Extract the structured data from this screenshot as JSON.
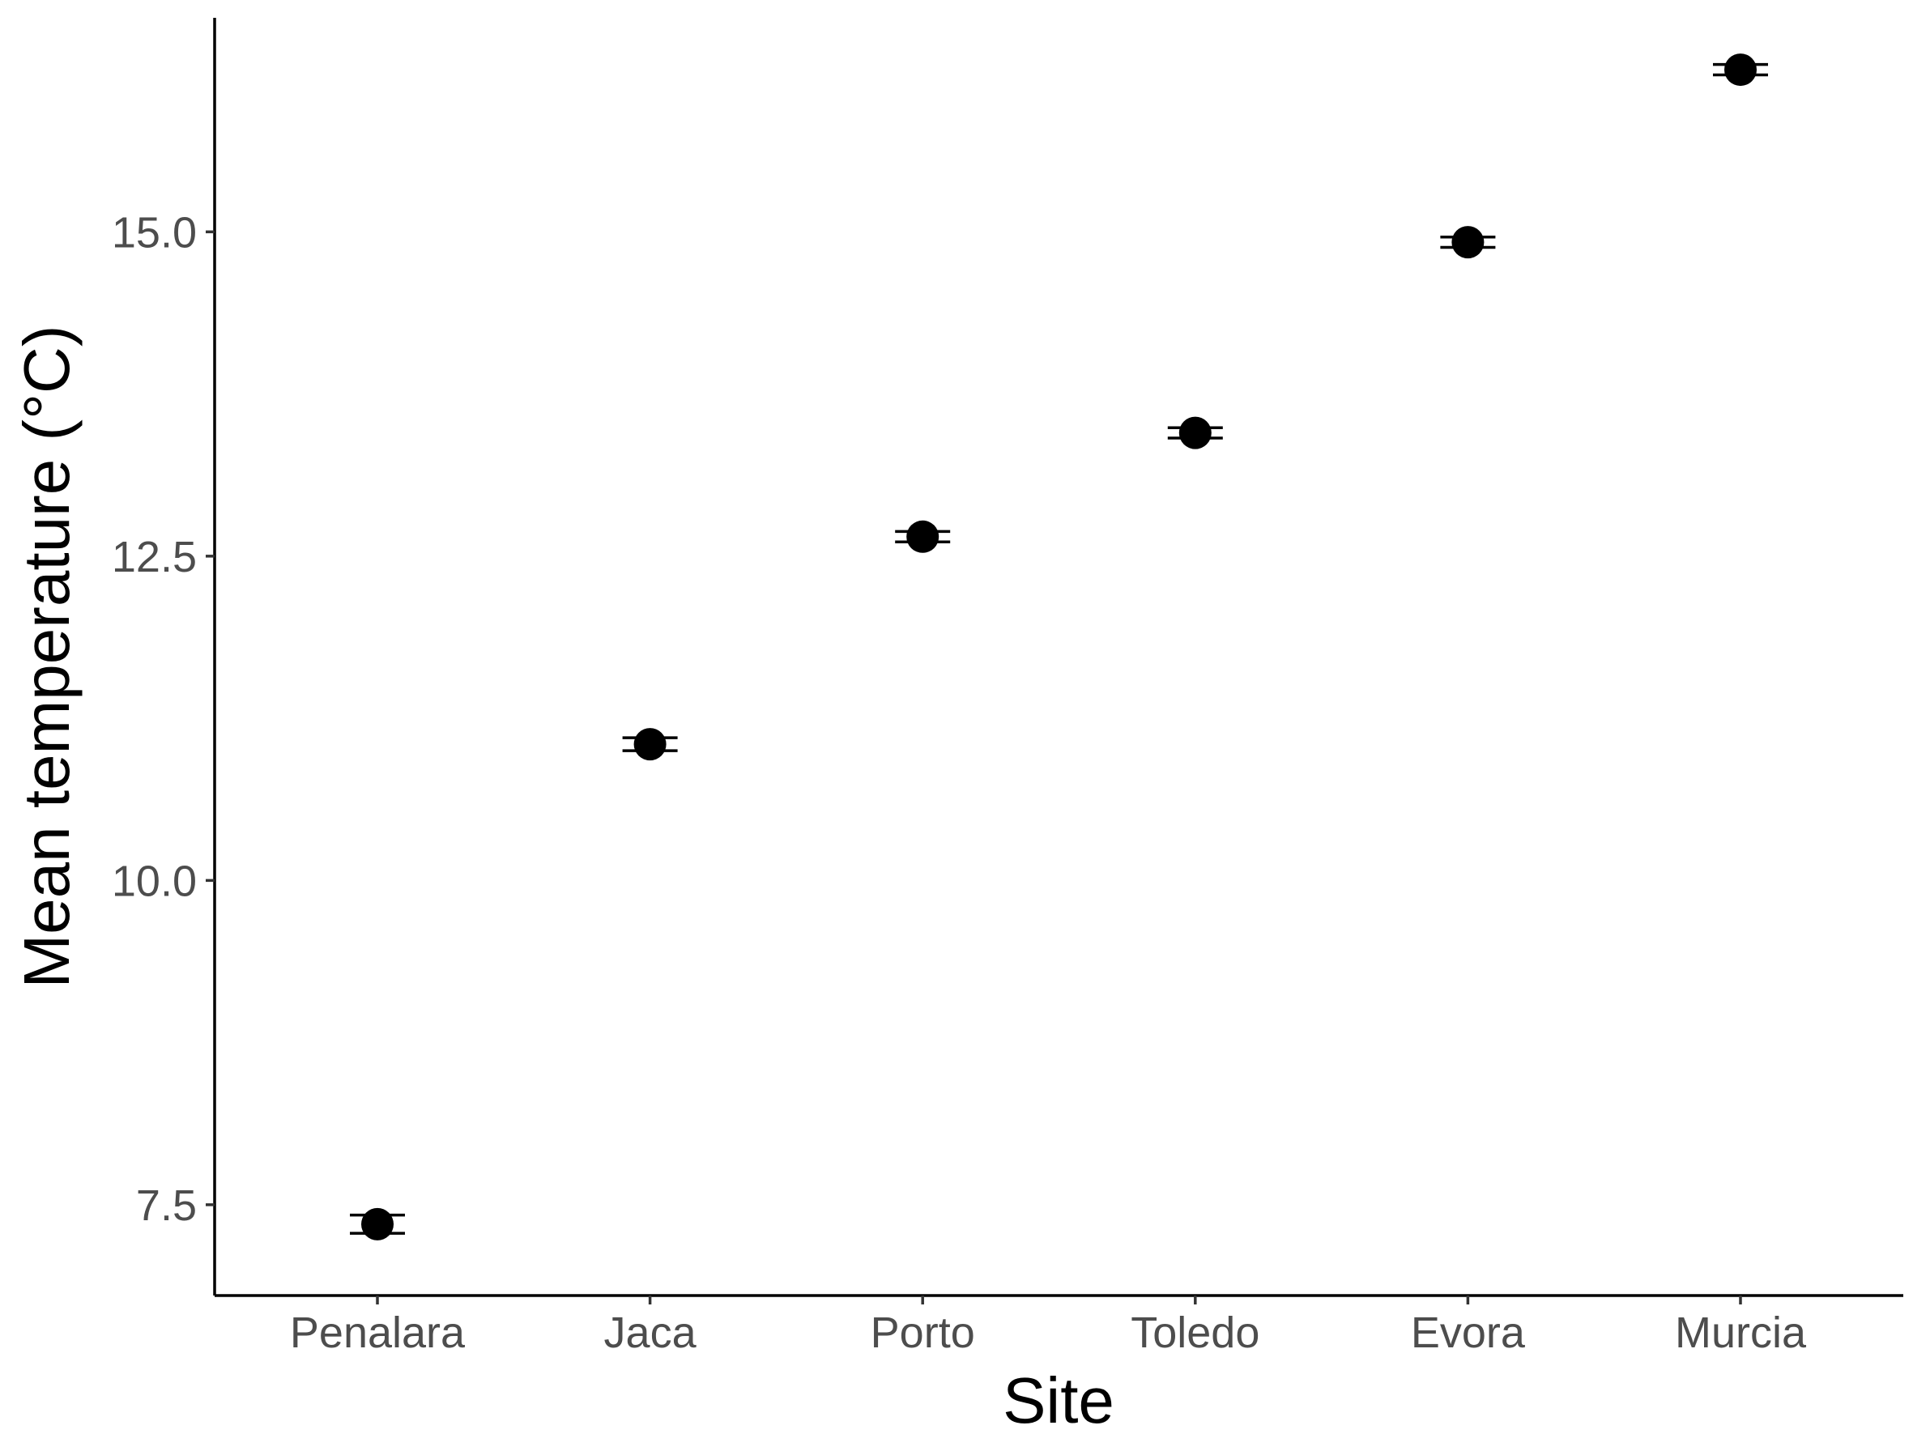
{
  "chart_data": {
    "type": "scatter",
    "title": "",
    "xlabel": "Site",
    "ylabel": "Mean temperature (°C)",
    "categories": [
      "Penalara",
      "Jaca",
      "Porto",
      "Toledo",
      "Evora",
      "Murcia"
    ],
    "series": [
      {
        "values": [
          7.35,
          11.05,
          12.65,
          13.45,
          14.92,
          16.25
        ],
        "error_low": [
          7.28,
          11.0,
          12.61,
          13.41,
          14.88,
          16.21
        ],
        "error_high": [
          7.42,
          11.1,
          12.69,
          13.49,
          14.96,
          16.29
        ]
      }
    ],
    "ylim": [
      6.8,
      16.65
    ],
    "yticks": [
      7.5,
      10.0,
      12.5,
      15.0
    ],
    "ytick_labels": [
      "7.5",
      "10.0",
      "12.5",
      "15.0"
    ],
    "grid": false,
    "legend": "none",
    "colors": {
      "point": "#000000",
      "axis": "#000000",
      "tick_label": "#4d4d4d"
    }
  }
}
